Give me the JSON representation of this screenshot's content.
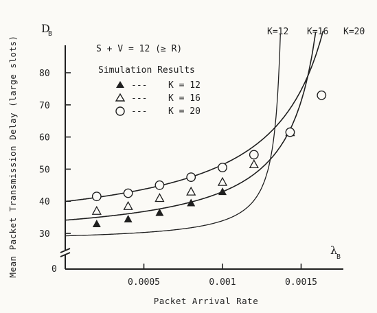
{
  "chart_data": {
    "type": "line",
    "ylabel": "Mean Packet Transmission Delay (large slots)",
    "xlabel": "Packet Arrival Rate",
    "y_symbol": "D",
    "y_symbol_sub": "B",
    "x_symbol": "λ",
    "x_symbol_sub": "B",
    "condition_text": "S + V = 12 (≥ R)",
    "legend_title": "Simulation Results",
    "xlim": [
      0,
      0.0018
    ],
    "ylim": [
      20,
      90
    ],
    "axis_break": true,
    "x_ticks": [
      {
        "value": 0.0005,
        "label": "0.0005"
      },
      {
        "value": 0.001,
        "label": "0.001"
      },
      {
        "value": 0.0015,
        "label": "0.0015"
      }
    ],
    "y_ticks": [
      {
        "value": 30,
        "label": "30"
      },
      {
        "value": 40,
        "label": "40"
      },
      {
        "value": 50,
        "label": "50"
      },
      {
        "value": 60,
        "label": "60"
      },
      {
        "value": 70,
        "label": "70"
      },
      {
        "value": 80,
        "label": "80"
      }
    ],
    "y_origin_label": "0",
    "series": [
      {
        "name": "K = 12",
        "curve_label": "K=12",
        "marker": "filled-triangle",
        "legend_dash": "---",
        "curve": {
          "a": 27.3,
          "b": 2.72,
          "pole": 0.00141
        },
        "points": [
          {
            "x": 0.0002,
            "y": 33
          },
          {
            "x": 0.0004,
            "y": 34.5
          },
          {
            "x": 0.0006,
            "y": 36.5
          },
          {
            "x": 0.0008,
            "y": 39.5
          },
          {
            "x": 0.001,
            "y": 43
          }
        ]
      },
      {
        "name": "K = 16",
        "curve_label": "K=16",
        "marker": "open-triangle",
        "legend_dash": "---",
        "curve": {
          "a": 27.2,
          "b": 12.3,
          "pole": 0.00178
        },
        "points": [
          {
            "x": 0.0002,
            "y": 37
          },
          {
            "x": 0.0004,
            "y": 38.5
          },
          {
            "x": 0.0006,
            "y": 41
          },
          {
            "x": 0.0008,
            "y": 43
          },
          {
            "x": 0.001,
            "y": 46
          },
          {
            "x": 0.0012,
            "y": 51.5
          },
          {
            "x": 0.00143,
            "y": 61.5
          }
        ]
      },
      {
        "name": "K = 20",
        "curve_label": "K=20",
        "marker": "open-circle",
        "legend_dash": "---",
        "curve": {
          "a": 28.6,
          "b": 22.55,
          "pole": 0.00199
        },
        "points": [
          {
            "x": 0.0002,
            "y": 41.5
          },
          {
            "x": 0.0004,
            "y": 42.5
          },
          {
            "x": 0.0006,
            "y": 45
          },
          {
            "x": 0.0008,
            "y": 47.5
          },
          {
            "x": 0.001,
            "y": 50.5
          },
          {
            "x": 0.0012,
            "y": 54.5
          },
          {
            "x": 0.00143,
            "y": 61.5
          },
          {
            "x": 0.00163,
            "y": 73
          }
        ]
      }
    ]
  }
}
